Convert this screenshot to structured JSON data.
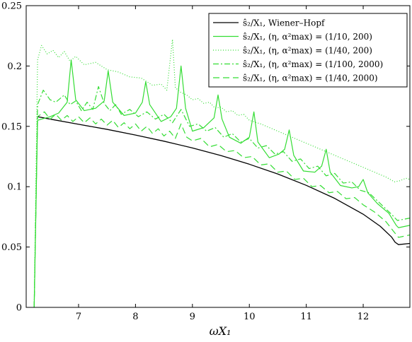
{
  "chart_data": {
    "type": "line",
    "title": "",
    "xlabel": "ωX₁",
    "ylabel": "",
    "xlim": [
      6.08,
      12.82
    ],
    "ylim": [
      0,
      0.25
    ],
    "xticks": [
      7,
      8,
      9,
      10,
      11,
      12
    ],
    "xtick_labels": [
      "7",
      "8",
      "9",
      "10",
      "11",
      "12"
    ],
    "yticks": [
      0,
      0.05,
      0.1,
      0.15,
      0.2,
      0.25
    ],
    "ytick_labels": [
      "0",
      "0.05",
      "0.1",
      "0.15",
      "0.2",
      "0.25"
    ],
    "grid": false,
    "legend_position": "top-right",
    "series": [
      {
        "name": "ŝ₂/X₁, Wiener–Hopf",
        "color": "#000000",
        "dash": "solid",
        "points": [
          [
            6.28,
            0.158
          ],
          [
            6.5,
            0.156
          ],
          [
            7.0,
            0.1517
          ],
          [
            7.5,
            0.1475
          ],
          [
            8.0,
            0.1428
          ],
          [
            8.5,
            0.1377
          ],
          [
            9.0,
            0.1321
          ],
          [
            9.5,
            0.1258
          ],
          [
            10.0,
            0.1186
          ],
          [
            10.5,
            0.1105
          ],
          [
            11.0,
            0.1011
          ],
          [
            11.5,
            0.0903
          ],
          [
            12.0,
            0.0772
          ],
          [
            12.3,
            0.0672
          ],
          [
            12.5,
            0.0582
          ],
          [
            12.56,
            0.054
          ],
          [
            12.62,
            0.052
          ],
          [
            12.82,
            0.053
          ]
        ]
      },
      {
        "name": "ŝ₂/X₁, (η, α²max) = (1/10, 200)",
        "color": "#33dd33",
        "dash": "solid",
        "points": [
          [
            6.22,
            0
          ],
          [
            6.28,
            0.155
          ],
          [
            6.35,
            0.156
          ],
          [
            6.5,
            0.158
          ],
          [
            6.65,
            0.161
          ],
          [
            6.8,
            0.17
          ],
          [
            6.87,
            0.205
          ],
          [
            6.95,
            0.172
          ],
          [
            7.1,
            0.163
          ],
          [
            7.3,
            0.165
          ],
          [
            7.45,
            0.171
          ],
          [
            7.52,
            0.196
          ],
          [
            7.6,
            0.17
          ],
          [
            7.8,
            0.159
          ],
          [
            8.0,
            0.161
          ],
          [
            8.12,
            0.17
          ],
          [
            8.18,
            0.187
          ],
          [
            8.25,
            0.168
          ],
          [
            8.45,
            0.154
          ],
          [
            8.62,
            0.158
          ],
          [
            8.72,
            0.165
          ],
          [
            8.8,
            0.2
          ],
          [
            8.88,
            0.165
          ],
          [
            9.0,
            0.146
          ],
          [
            9.2,
            0.149
          ],
          [
            9.38,
            0.157
          ],
          [
            9.45,
            0.176
          ],
          [
            9.52,
            0.156
          ],
          [
            9.65,
            0.141
          ],
          [
            9.85,
            0.136
          ],
          [
            10.0,
            0.141
          ],
          [
            10.08,
            0.162
          ],
          [
            10.15,
            0.137
          ],
          [
            10.35,
            0.124
          ],
          [
            10.52,
            0.127
          ],
          [
            10.62,
            0.131
          ],
          [
            10.7,
            0.147
          ],
          [
            10.78,
            0.126
          ],
          [
            10.95,
            0.113
          ],
          [
            11.15,
            0.112
          ],
          [
            11.27,
            0.117
          ],
          [
            11.35,
            0.131
          ],
          [
            11.42,
            0.112
          ],
          [
            11.6,
            0.101
          ],
          [
            11.8,
            0.099
          ],
          [
            11.92,
            0.1
          ],
          [
            12.0,
            0.106
          ],
          [
            12.08,
            0.095
          ],
          [
            12.25,
            0.086
          ],
          [
            12.45,
            0.078
          ],
          [
            12.58,
            0.068
          ],
          [
            12.62,
            0.066
          ],
          [
            12.82,
            0.068
          ]
        ]
      },
      {
        "name": "ŝ₂/X₁, (η, α²max) = (1/40, 200)",
        "color": "#33dd33",
        "dash": "1,2.5",
        "points": [
          [
            6.22,
            0
          ],
          [
            6.28,
            0.205
          ],
          [
            6.35,
            0.217
          ],
          [
            6.45,
            0.21
          ],
          [
            6.55,
            0.213
          ],
          [
            6.65,
            0.207
          ],
          [
            6.75,
            0.212
          ],
          [
            6.85,
            0.204
          ],
          [
            6.95,
            0.208
          ],
          [
            7.1,
            0.201
          ],
          [
            7.3,
            0.203
          ],
          [
            7.5,
            0.197
          ],
          [
            7.7,
            0.195
          ],
          [
            7.9,
            0.191
          ],
          [
            8.1,
            0.19
          ],
          [
            8.3,
            0.184
          ],
          [
            8.45,
            0.185
          ],
          [
            8.55,
            0.18
          ],
          [
            8.65,
            0.222
          ],
          [
            8.7,
            0.182
          ],
          [
            8.8,
            0.178
          ],
          [
            8.9,
            0.176
          ],
          [
            9.0,
            0.172
          ],
          [
            9.1,
            0.173
          ],
          [
            9.2,
            0.169
          ],
          [
            9.3,
            0.17
          ],
          [
            9.4,
            0.165
          ],
          [
            9.5,
            0.166
          ],
          [
            9.6,
            0.162
          ],
          [
            9.7,
            0.163
          ],
          [
            9.8,
            0.159
          ],
          [
            9.9,
            0.16
          ],
          [
            10.0,
            0.155
          ],
          [
            10.2,
            0.152
          ],
          [
            10.4,
            0.148
          ],
          [
            10.6,
            0.144
          ],
          [
            10.8,
            0.14
          ],
          [
            11.0,
            0.136
          ],
          [
            11.2,
            0.132
          ],
          [
            11.4,
            0.128
          ],
          [
            11.6,
            0.124
          ],
          [
            11.8,
            0.12
          ],
          [
            12.0,
            0.116
          ],
          [
            12.2,
            0.112
          ],
          [
            12.4,
            0.108
          ],
          [
            12.55,
            0.104
          ],
          [
            12.65,
            0.105
          ],
          [
            12.75,
            0.107
          ],
          [
            12.82,
            0.106
          ]
        ]
      },
      {
        "name": "ŝ₂/X₁, (η, α²max) = (1/100, 2000)",
        "color": "#33dd33",
        "dash": "8,3,2,3",
        "points": [
          [
            6.22,
            0
          ],
          [
            6.28,
            0.168
          ],
          [
            6.38,
            0.18
          ],
          [
            6.5,
            0.172
          ],
          [
            6.6,
            0.17
          ],
          [
            6.75,
            0.176
          ],
          [
            6.85,
            0.168
          ],
          [
            6.95,
            0.171
          ],
          [
            7.05,
            0.163
          ],
          [
            7.15,
            0.17
          ],
          [
            7.25,
            0.164
          ],
          [
            7.35,
            0.183
          ],
          [
            7.45,
            0.169
          ],
          [
            7.55,
            0.163
          ],
          [
            7.65,
            0.168
          ],
          [
            7.75,
            0.16
          ],
          [
            7.9,
            0.164
          ],
          [
            8.05,
            0.158
          ],
          [
            8.2,
            0.162
          ],
          [
            8.35,
            0.156
          ],
          [
            8.5,
            0.16
          ],
          [
            8.65,
            0.153
          ],
          [
            8.8,
            0.164
          ],
          [
            8.95,
            0.15
          ],
          [
            9.1,
            0.152
          ],
          [
            9.25,
            0.146
          ],
          [
            9.4,
            0.149
          ],
          [
            9.55,
            0.141
          ],
          [
            9.7,
            0.144
          ],
          [
            9.85,
            0.137
          ],
          [
            10.0,
            0.14
          ],
          [
            10.15,
            0.132
          ],
          [
            10.3,
            0.134
          ],
          [
            10.45,
            0.127
          ],
          [
            10.6,
            0.129
          ],
          [
            10.75,
            0.121
          ],
          [
            10.9,
            0.123
          ],
          [
            11.05,
            0.115
          ],
          [
            11.2,
            0.117
          ],
          [
            11.35,
            0.109
          ],
          [
            11.5,
            0.111
          ],
          [
            11.65,
            0.103
          ],
          [
            11.8,
            0.104
          ],
          [
            11.95,
            0.097
          ],
          [
            12.1,
            0.095
          ],
          [
            12.3,
            0.086
          ],
          [
            12.5,
            0.077
          ],
          [
            12.6,
            0.072
          ],
          [
            12.82,
            0.074
          ]
        ]
      },
      {
        "name": "ŝ₂/X₁, (η, α²max) = (1/40, 2000)",
        "color": "#33dd33",
        "dash": "9,5",
        "points": [
          [
            6.22,
            0
          ],
          [
            6.28,
            0.158
          ],
          [
            6.4,
            0.162
          ],
          [
            6.5,
            0.156
          ],
          [
            6.6,
            0.16
          ],
          [
            6.7,
            0.155
          ],
          [
            6.8,
            0.159
          ],
          [
            6.9,
            0.154
          ],
          [
            7.0,
            0.158
          ],
          [
            7.1,
            0.153
          ],
          [
            7.2,
            0.157
          ],
          [
            7.3,
            0.152
          ],
          [
            7.4,
            0.156
          ],
          [
            7.5,
            0.151
          ],
          [
            7.6,
            0.155
          ],
          [
            7.7,
            0.149
          ],
          [
            7.8,
            0.153
          ],
          [
            7.9,
            0.148
          ],
          [
            8.0,
            0.152
          ],
          [
            8.1,
            0.146
          ],
          [
            8.2,
            0.15
          ],
          [
            8.3,
            0.144
          ],
          [
            8.4,
            0.148
          ],
          [
            8.5,
            0.142
          ],
          [
            8.6,
            0.146
          ],
          [
            8.7,
            0.14
          ],
          [
            8.8,
            0.152
          ],
          [
            8.9,
            0.141
          ],
          [
            9.0,
            0.138
          ],
          [
            9.15,
            0.14
          ],
          [
            9.3,
            0.133
          ],
          [
            9.45,
            0.135
          ],
          [
            9.6,
            0.129
          ],
          [
            9.75,
            0.13
          ],
          [
            9.9,
            0.124
          ],
          [
            10.05,
            0.125
          ],
          [
            10.2,
            0.118
          ],
          [
            10.35,
            0.119
          ],
          [
            10.5,
            0.112
          ],
          [
            10.65,
            0.113
          ],
          [
            10.8,
            0.106
          ],
          [
            10.95,
            0.107
          ],
          [
            11.1,
            0.1
          ],
          [
            11.25,
            0.101
          ],
          [
            11.4,
            0.095
          ],
          [
            11.55,
            0.096
          ],
          [
            11.7,
            0.09
          ],
          [
            11.85,
            0.091
          ],
          [
            12.0,
            0.085
          ],
          [
            12.2,
            0.079
          ],
          [
            12.4,
            0.071
          ],
          [
            12.55,
            0.062
          ],
          [
            12.62,
            0.058
          ],
          [
            12.82,
            0.06
          ]
        ]
      }
    ],
    "legend": [
      {
        "prefix": "ŝ₂/X₁,",
        "text": " Wiener–Hopf"
      },
      {
        "prefix": "ŝ₂/X₁,",
        "text": " (η, α²max) = (1/10, 200)"
      },
      {
        "prefix": "ŝ₂/X₁,",
        "text": " (η, α²max) = (1/40, 200)"
      },
      {
        "prefix": "ŝ₂/X₁,",
        "text": " (η, α²max) = (1/100, 2000)"
      },
      {
        "prefix": "ŝ₂/X₁,",
        "text": " (η, α²max) = (1/40, 2000)"
      }
    ]
  }
}
